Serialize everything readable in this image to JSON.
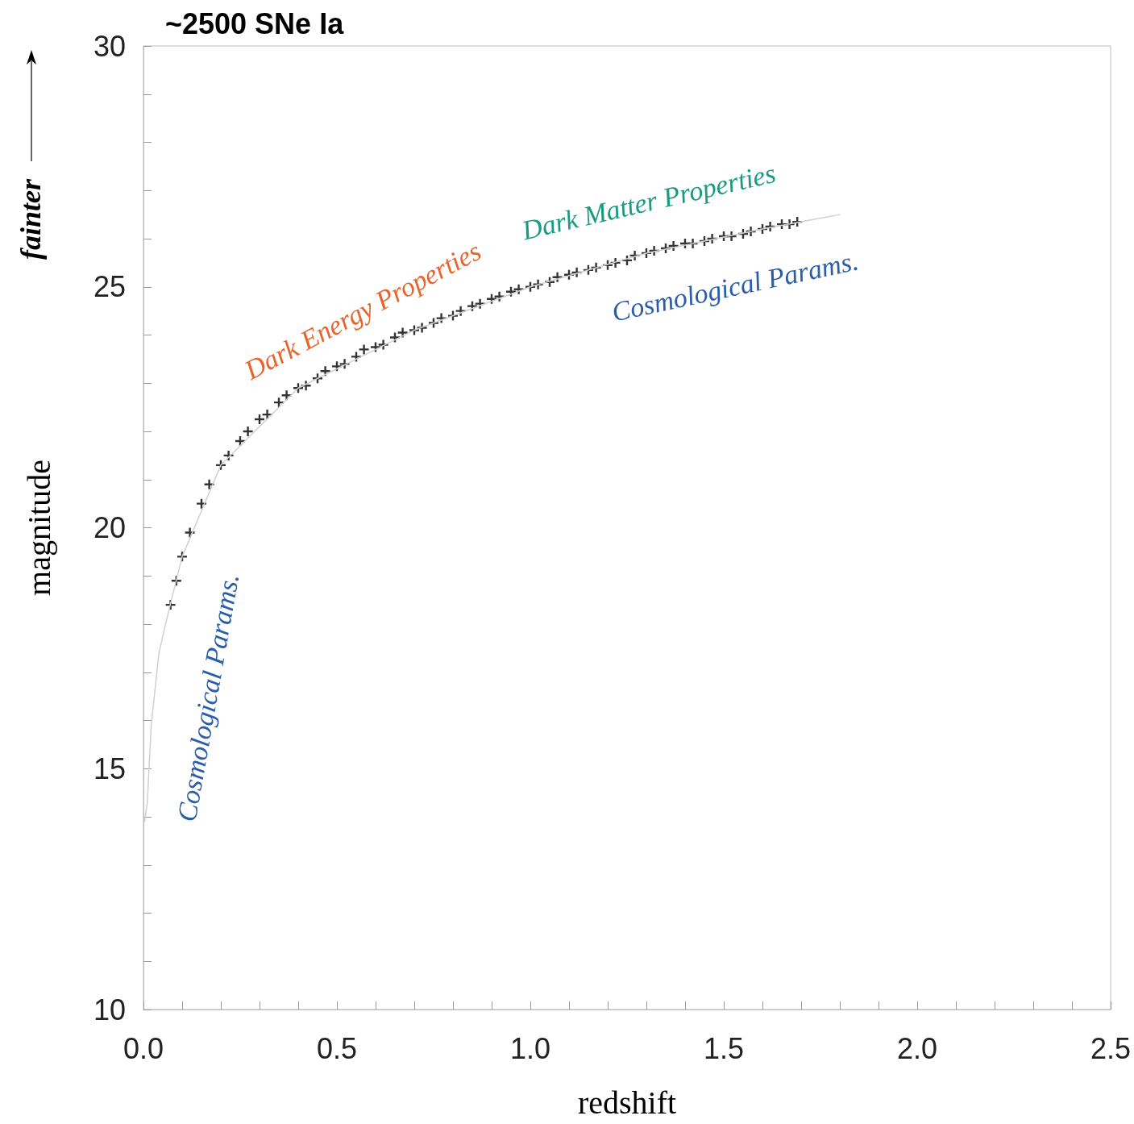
{
  "chart_data": {
    "type": "scatter",
    "title": "~2500 SNe Ia",
    "xlabel": "redshift",
    "ylabel": "magnitude",
    "annotations": [
      "fainter",
      "Dark Energy Properties",
      "Dark Matter Properties",
      "Cosmological Params.",
      "Cosmological Params."
    ],
    "xlim": [
      0,
      2.5
    ],
    "ylim": [
      10,
      30
    ],
    "xticks": [
      {
        "value": 0,
        "label": "0.0"
      },
      {
        "value": 0.1,
        "label": null
      },
      {
        "value": 0.2,
        "label": null
      },
      {
        "value": 0.3,
        "label": null
      },
      {
        "value": 0.4,
        "label": null
      },
      {
        "value": 0.5,
        "label": "0.5"
      },
      {
        "value": 0.6,
        "label": null
      },
      {
        "value": 0.7,
        "label": null
      },
      {
        "value": 0.8,
        "label": null
      },
      {
        "value": 0.9,
        "label": null
      },
      {
        "value": 1,
        "label": "1.0"
      },
      {
        "value": 1.1,
        "label": null
      },
      {
        "value": 1.2,
        "label": null
      },
      {
        "value": 1.3,
        "label": null
      },
      {
        "value": 1.4,
        "label": null
      },
      {
        "value": 1.5,
        "label": "1.5"
      },
      {
        "value": 1.6,
        "label": null
      },
      {
        "value": 1.7,
        "label": null
      },
      {
        "value": 1.8,
        "label": null
      },
      {
        "value": 1.9,
        "label": null
      },
      {
        "value": 2,
        "label": "2.0"
      },
      {
        "value": 2.1,
        "label": null
      },
      {
        "value": 2.2,
        "label": null
      },
      {
        "value": 2.3,
        "label": null
      },
      {
        "value": 2.4,
        "label": null
      },
      {
        "value": 2.5,
        "label": "2.5"
      }
    ],
    "yticks": [
      10,
      {
        "value": 11,
        "label": null
      },
      {
        "value": 12,
        "label": null
      },
      {
        "value": 13,
        "label": null
      },
      {
        "value": 14,
        "label": null
      },
      15,
      {
        "value": 16,
        "label": null
      },
      {
        "value": 17,
        "label": null
      },
      {
        "value": 18,
        "label": null
      },
      {
        "value": 19,
        "label": null
      },
      20,
      {
        "value": 21,
        "label": null
      },
      {
        "value": 22,
        "label": null
      },
      {
        "value": 23,
        "label": null
      },
      {
        "value": 24,
        "label": null
      },
      25,
      {
        "value": 26,
        "label": null
      },
      {
        "value": 27,
        "label": null
      },
      {
        "value": 28,
        "label": null
      },
      {
        "value": 29,
        "label": null
      },
      30
    ],
    "grid": false,
    "series": [
      {
        "type": "line",
        "color": "#d0d0d0",
        "marker": "none",
        "line_style": "solid",
        "x": [
          0.003,
          0.01,
          0.02,
          0.04,
          0.06,
          0.1,
          0.2,
          0.4,
          0.7,
          1.0,
          1.3,
          1.6,
          1.8
        ],
        "values": [
          13.9,
          14.3,
          15.9,
          17.4,
          18.1,
          19.4,
          21.3,
          22.9,
          24.1,
          25.0,
          25.7,
          26.2,
          26.5
        ]
      },
      {
        "color": "#000000",
        "marker": "cross",
        "x": [
          0.07,
          0.085,
          0.1,
          0.12,
          0.15,
          0.17,
          0.2,
          0.22,
          0.25,
          0.27,
          0.3,
          0.32,
          0.35,
          0.37,
          0.4,
          0.42,
          0.45,
          0.47,
          0.5,
          0.52,
          0.55,
          0.57,
          0.6,
          0.62,
          0.65,
          0.67,
          0.7,
          0.72,
          0.75,
          0.77,
          0.8,
          0.82,
          0.85,
          0.87,
          0.9,
          0.92,
          0.95,
          0.97,
          1.0,
          1.02,
          1.05,
          1.07,
          1.1,
          1.12,
          1.15,
          1.17,
          1.2,
          1.22,
          1.25,
          1.27,
          1.3,
          1.32,
          1.35,
          1.37,
          1.4,
          1.42,
          1.45,
          1.47,
          1.5,
          1.52,
          1.55,
          1.57,
          1.6,
          1.62,
          1.65,
          1.67,
          1.69
        ],
        "values": [
          18.4,
          18.9,
          19.4,
          19.9,
          20.5,
          20.9,
          21.3,
          21.5,
          21.8,
          22.0,
          22.25,
          22.35,
          22.6,
          22.75,
          22.9,
          22.95,
          23.1,
          23.25,
          23.35,
          23.4,
          23.55,
          23.7,
          23.75,
          23.8,
          23.95,
          24.05,
          24.1,
          24.15,
          24.25,
          24.35,
          24.4,
          24.5,
          24.6,
          24.65,
          24.75,
          24.8,
          24.9,
          24.95,
          25.0,
          25.05,
          25.1,
          25.2,
          25.25,
          25.3,
          25.35,
          25.4,
          25.45,
          25.5,
          25.55,
          25.65,
          25.7,
          25.75,
          25.8,
          25.85,
          25.9,
          25.9,
          25.95,
          26.0,
          26.05,
          26.05,
          26.1,
          26.15,
          26.2,
          26.25,
          26.3,
          26.3,
          26.35
        ]
      }
    ]
  }
}
